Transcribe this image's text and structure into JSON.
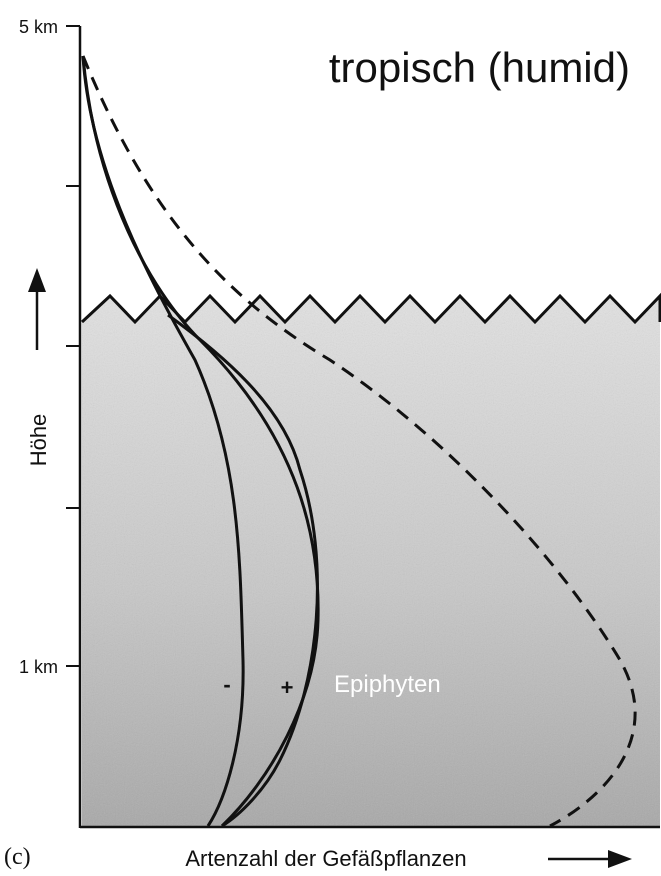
{
  "title": "tropisch (humid)",
  "y_axis": {
    "label": "Höhe",
    "tick_top": "5 km",
    "tick_bottom": "1 km"
  },
  "x_axis": {
    "label": "Artenzahl der Gefäßpflanzen"
  },
  "panel_label": "(c)",
  "annotations": {
    "minus": "-",
    "plus": "+",
    "epiphytes": "Epiphyten"
  },
  "colors": {
    "forest_fill": "#b9b9b9",
    "forest_fill_light": "#dcdcdc",
    "line": "#111111"
  }
}
